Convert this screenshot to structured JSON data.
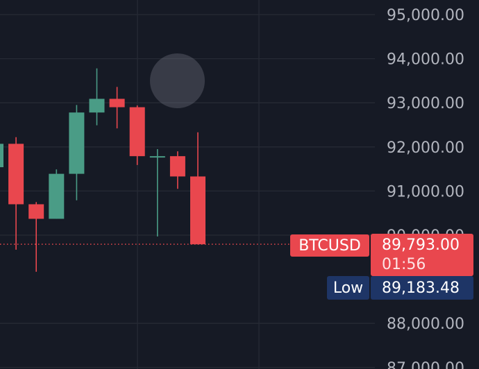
{
  "chart_data": {
    "type": "candlestick",
    "symbol": "BTCUSD",
    "ylim": [
      86900,
      95300
    ],
    "y_ticks": [
      95000,
      94000,
      93000,
      92000,
      91000,
      90000,
      88000,
      87000
    ],
    "y_tick_labels": [
      "95,000.00",
      "94,000.00",
      "93,000.00",
      "92,000.00",
      "91,000.00",
      "90,000.00",
      "88,000.00",
      "87,000.00"
    ],
    "grid": true,
    "current_price": 89793.0,
    "current_price_label": "89,793.00",
    "countdown": "01:56",
    "low_label": "Low",
    "low_value": 89183.48,
    "low_value_label": "89,183.48",
    "colors": {
      "up": "#4a9c86",
      "down": "#e9474e",
      "background": "#161a25",
      "grid": "#262a35"
    },
    "candles": [
      {
        "open": 91540,
        "high": 92030,
        "low": 91540,
        "close": 92070
      },
      {
        "open": 92070,
        "high": 92220,
        "low": 89670,
        "close": 90700
      },
      {
        "open": 90700,
        "high": 90750,
        "low": 89170,
        "close": 90370
      },
      {
        "open": 90370,
        "high": 91490,
        "low": 90370,
        "close": 91390
      },
      {
        "open": 91390,
        "high": 92950,
        "low": 90790,
        "close": 92780
      },
      {
        "open": 92780,
        "high": 93780,
        "low": 92490,
        "close": 93090
      },
      {
        "open": 93090,
        "high": 93360,
        "low": 92420,
        "close": 92900
      },
      {
        "open": 92900,
        "high": 92940,
        "low": 91590,
        "close": 91790
      },
      {
        "open": 91790,
        "high": 91950,
        "low": 89970,
        "close": 91790
      },
      {
        "open": 91790,
        "high": 91900,
        "low": 91050,
        "close": 91330
      },
      {
        "open": 91330,
        "high": 92330,
        "low": 89790,
        "close": 89793
      }
    ]
  }
}
